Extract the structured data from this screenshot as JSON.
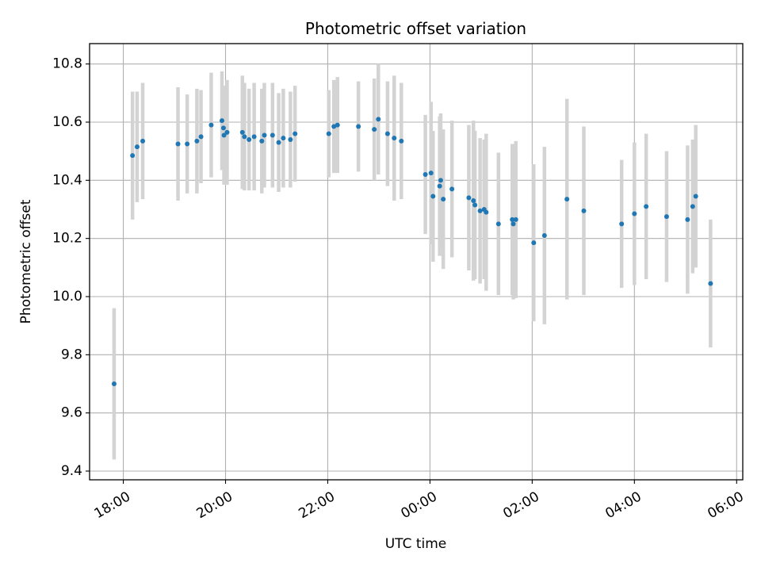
{
  "chart_data": {
    "type": "scatter",
    "title": "Photometric offset variation",
    "xlabel": "UTC time",
    "ylabel": "Photometric offset",
    "x_unit": "UTC hours since 00:00 (negative = previous evening)",
    "xlim": [
      -6.66,
      6.12
    ],
    "ylim": [
      9.37,
      10.87
    ],
    "grid": true,
    "x_ticks": [
      {
        "value": -6,
        "label": "18:00"
      },
      {
        "value": -4,
        "label": "20:00"
      },
      {
        "value": -2,
        "label": "22:00"
      },
      {
        "value": 0,
        "label": "00:00"
      },
      {
        "value": 2,
        "label": "02:00"
      },
      {
        "value": 4,
        "label": "04:00"
      },
      {
        "value": 6,
        "label": "06:00"
      }
    ],
    "y_ticks": [
      {
        "value": 9.4,
        "label": "9.4"
      },
      {
        "value": 9.6,
        "label": "9.6"
      },
      {
        "value": 9.8,
        "label": "9.8"
      },
      {
        "value": 10.0,
        "label": "10.0"
      },
      {
        "value": 10.2,
        "label": "10.2"
      },
      {
        "value": 10.4,
        "label": "10.4"
      },
      {
        "value": 10.6,
        "label": "10.6"
      },
      {
        "value": 10.8,
        "label": "10.8"
      }
    ],
    "point_color": "#1f77b4",
    "errorbar_color": "#d3d3d3",
    "points": [
      {
        "x": -6.18,
        "y": 9.7,
        "err": 0.26
      },
      {
        "x": -5.82,
        "y": 10.485,
        "err": 0.22
      },
      {
        "x": -5.73,
        "y": 10.515,
        "err": 0.19
      },
      {
        "x": -5.62,
        "y": 10.535,
        "err": 0.2
      },
      {
        "x": -4.93,
        "y": 10.525,
        "err": 0.195
      },
      {
        "x": -4.75,
        "y": 10.525,
        "err": 0.17
      },
      {
        "x": -4.56,
        "y": 10.535,
        "err": 0.18
      },
      {
        "x": -4.48,
        "y": 10.55,
        "err": 0.16
      },
      {
        "x": -4.28,
        "y": 10.59,
        "err": 0.18
      },
      {
        "x": -4.07,
        "y": 10.605,
        "err": 0.17
      },
      {
        "x": -4.04,
        "y": 10.58,
        "err": 0.14
      },
      {
        "x": -4.03,
        "y": 10.555,
        "err": 0.17
      },
      {
        "x": -3.97,
        "y": 10.565,
        "err": 0.18
      },
      {
        "x": -3.67,
        "y": 10.565,
        "err": 0.195
      },
      {
        "x": -3.63,
        "y": 10.55,
        "err": 0.185
      },
      {
        "x": -3.54,
        "y": 10.54,
        "err": 0.175
      },
      {
        "x": -3.44,
        "y": 10.55,
        "err": 0.185
      },
      {
        "x": -3.29,
        "y": 10.535,
        "err": 0.18
      },
      {
        "x": -3.24,
        "y": 10.555,
        "err": 0.18
      },
      {
        "x": -3.08,
        "y": 10.555,
        "err": 0.18
      },
      {
        "x": -2.96,
        "y": 10.53,
        "err": 0.17
      },
      {
        "x": -2.87,
        "y": 10.545,
        "err": 0.17
      },
      {
        "x": -2.73,
        "y": 10.54,
        "err": 0.165
      },
      {
        "x": -2.64,
        "y": 10.56,
        "err": 0.165
      },
      {
        "x": -1.98,
        "y": 10.56,
        "err": 0.15
      },
      {
        "x": -1.88,
        "y": 10.585,
        "err": 0.16
      },
      {
        "x": -1.81,
        "y": 10.59,
        "err": 0.165
      },
      {
        "x": -1.4,
        "y": 10.585,
        "err": 0.155
      },
      {
        "x": -1.09,
        "y": 10.575,
        "err": 0.175
      },
      {
        "x": -1.01,
        "y": 10.61,
        "err": 0.19
      },
      {
        "x": -0.83,
        "y": 10.56,
        "err": 0.18
      },
      {
        "x": -0.7,
        "y": 10.545,
        "err": 0.215
      },
      {
        "x": -0.56,
        "y": 10.535,
        "err": 0.2
      },
      {
        "x": -0.09,
        "y": 10.42,
        "err": 0.205
      },
      {
        "x": 0.02,
        "y": 10.425,
        "err": 0.245
      },
      {
        "x": 0.06,
        "y": 10.345,
        "err": 0.225
      },
      {
        "x": 0.19,
        "y": 10.38,
        "err": 0.24
      },
      {
        "x": 0.21,
        "y": 10.4,
        "err": 0.23
      },
      {
        "x": 0.26,
        "y": 10.335,
        "err": 0.24
      },
      {
        "x": 0.43,
        "y": 10.37,
        "err": 0.235
      },
      {
        "x": 0.76,
        "y": 10.34,
        "err": 0.25
      },
      {
        "x": 0.85,
        "y": 10.33,
        "err": 0.275
      },
      {
        "x": 0.88,
        "y": 10.315,
        "err": 0.255
      },
      {
        "x": 0.98,
        "y": 10.295,
        "err": 0.25
      },
      {
        "x": 1.06,
        "y": 10.3,
        "err": 0.24
      },
      {
        "x": 1.1,
        "y": 10.29,
        "err": 0.27
      },
      {
        "x": 1.34,
        "y": 10.25,
        "err": 0.245
      },
      {
        "x": 1.61,
        "y": 10.265,
        "err": 0.26
      },
      {
        "x": 1.63,
        "y": 10.25,
        "err": 0.26
      },
      {
        "x": 1.68,
        "y": 10.265,
        "err": 0.27
      },
      {
        "x": 2.03,
        "y": 10.185,
        "err": 0.27
      },
      {
        "x": 2.24,
        "y": 10.21,
        "err": 0.305
      },
      {
        "x": 2.68,
        "y": 10.335,
        "err": 0.345
      },
      {
        "x": 3.01,
        "y": 10.295,
        "err": 0.29
      },
      {
        "x": 3.75,
        "y": 10.25,
        "err": 0.22
      },
      {
        "x": 4.0,
        "y": 10.285,
        "err": 0.245
      },
      {
        "x": 4.23,
        "y": 10.31,
        "err": 0.25
      },
      {
        "x": 4.63,
        "y": 10.275,
        "err": 0.225
      },
      {
        "x": 5.04,
        "y": 10.265,
        "err": 0.255
      },
      {
        "x": 5.14,
        "y": 10.31,
        "err": 0.23
      },
      {
        "x": 5.2,
        "y": 10.345,
        "err": 0.245
      },
      {
        "x": 5.49,
        "y": 10.045,
        "err": 0.22
      }
    ]
  }
}
